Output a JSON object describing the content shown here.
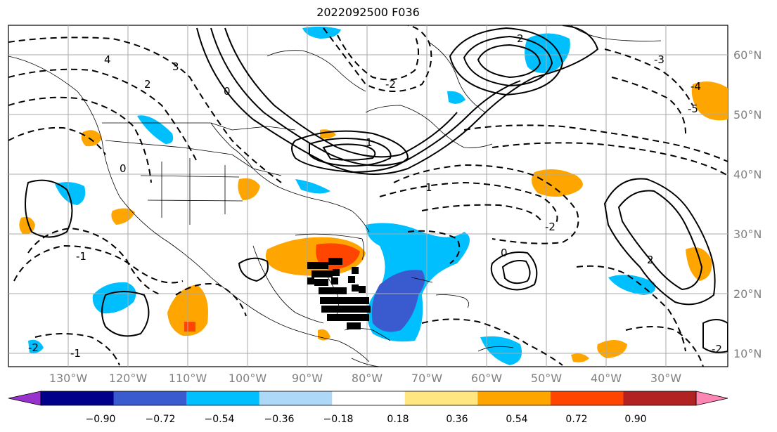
{
  "title": "2022092500 F036",
  "lat_labels": [
    "60°N",
    "50°N",
    "40°N",
    "30°N",
    "20°N",
    "10°N"
  ],
  "lon_labels": [
    "130°W",
    "120°W",
    "110°W",
    "100°W",
    "90°W",
    "80°W",
    "70°W",
    "60°W",
    "50°W",
    "40°W",
    "30°W"
  ],
  "colorbar": {
    "colors": [
      "#9932cc",
      "#00008b",
      "#3a5bd0",
      "#00bfff",
      "#add8f7",
      "#ffffff",
      "#ffe680",
      "#ffa500",
      "#ff4500",
      "#b22222",
      "#ff85b3"
    ],
    "tick_labels": [
      "−0.90",
      "−0.72",
      "−0.54",
      "−0.36",
      "−0.18",
      "0.18",
      "0.36",
      "0.54",
      "0.72",
      "0.90"
    ]
  },
  "contour_labels": [
    "4",
    "3",
    "2",
    "1",
    "0",
    "-1",
    "-2",
    "-3",
    "-4",
    "-5",
    "2",
    "0",
    "-2",
    "1",
    "2",
    "-2",
    "0",
    "-1",
    "-2"
  ],
  "colors": {
    "gridline": "#a9a9a9",
    "axis_label": "#808080",
    "coastline": "#000000"
  }
}
